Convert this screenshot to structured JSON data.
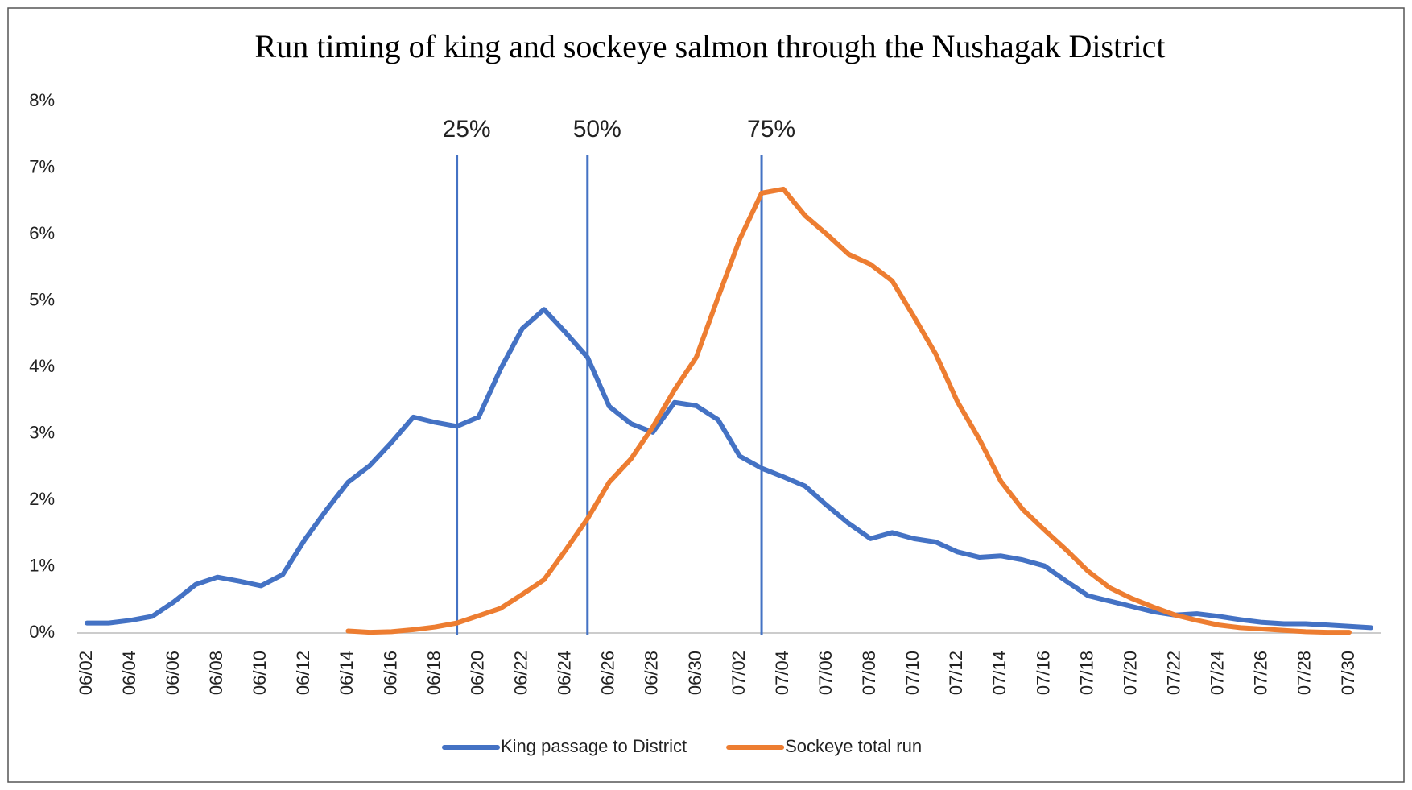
{
  "chart_data": {
    "type": "line",
    "title": "Run timing of king and sockeye salmon through the Nushagak District",
    "categories": [
      "06/02",
      null,
      "06/04",
      null,
      "06/06",
      null,
      "06/08",
      null,
      "06/10",
      null,
      "06/12",
      null,
      "06/14",
      null,
      "06/16",
      null,
      "06/18",
      null,
      "06/20",
      null,
      "06/22",
      null,
      "06/24",
      null,
      "06/26",
      null,
      "06/28",
      null,
      "06/30",
      null,
      "07/02",
      null,
      "07/04",
      null,
      "07/06",
      null,
      "07/08",
      null,
      "07/10",
      null,
      "07/12",
      null,
      "07/14",
      null,
      "07/16",
      null,
      "07/18",
      null,
      "07/20",
      null,
      "07/22",
      null,
      "07/24",
      null,
      "07/26",
      null,
      "07/28",
      null,
      "07/30",
      null
    ],
    "series": [
      {
        "name": "King passage to District",
        "color": "#4472c4",
        "values": [
          0.15,
          0.15,
          0.19,
          0.25,
          0.47,
          0.73,
          0.84,
          0.78,
          0.71,
          0.88,
          1.4,
          1.85,
          2.27,
          2.52,
          2.87,
          3.25,
          3.17,
          3.11,
          3.25,
          3.97,
          4.58,
          4.87,
          4.52,
          4.15,
          3.41,
          3.15,
          3.02,
          3.47,
          3.42,
          3.21,
          2.66,
          2.48,
          2.35,
          2.21,
          1.92,
          1.65,
          1.42,
          1.51,
          1.42,
          1.37,
          1.22,
          1.14,
          1.16,
          1.1,
          1.01,
          0.78,
          0.56,
          0.48,
          0.4,
          0.32,
          0.27,
          0.29,
          0.25,
          0.2,
          0.16,
          0.14,
          0.14,
          0.12,
          0.1,
          0.08
        ]
      },
      {
        "name": "Sockeye total run",
        "color": "#ed7d31",
        "values": [
          null,
          null,
          null,
          null,
          null,
          null,
          null,
          null,
          null,
          null,
          null,
          null,
          0.03,
          0.01,
          0.02,
          0.05,
          0.09,
          0.15,
          0.26,
          0.37,
          0.58,
          0.8,
          1.25,
          1.72,
          2.27,
          2.62,
          3.1,
          3.66,
          4.15,
          5.05,
          5.93,
          6.62,
          6.68,
          6.28,
          6.0,
          5.7,
          5.55,
          5.3,
          4.76,
          4.2,
          3.48,
          2.92,
          2.28,
          1.86,
          1.55,
          1.25,
          0.93,
          0.68,
          0.52,
          0.39,
          0.27,
          0.19,
          0.12,
          0.08,
          0.06,
          0.04,
          0.02,
          0.01,
          0.01,
          null
        ]
      }
    ],
    "ylim": [
      0,
      8
    ],
    "yticks": [
      {
        "value": 0,
        "label": "0%"
      },
      {
        "value": 1,
        "label": "1%"
      },
      {
        "value": 2,
        "label": "2%"
      },
      {
        "value": 3,
        "label": "3%"
      },
      {
        "value": 4,
        "label": "4%"
      },
      {
        "value": 5,
        "label": "5%"
      },
      {
        "value": 6,
        "label": "6%"
      },
      {
        "value": 7,
        "label": "7%"
      },
      {
        "value": 8,
        "label": "8%"
      }
    ],
    "grid": false,
    "legend": "bottom",
    "annotations": [
      {
        "label": "25%",
        "x": 17,
        "color": "#4472c4"
      },
      {
        "label": "50%",
        "x": 23,
        "color": "#4472c4"
      },
      {
        "label": "75%",
        "x": 31,
        "color": "#4472c4"
      }
    ]
  }
}
